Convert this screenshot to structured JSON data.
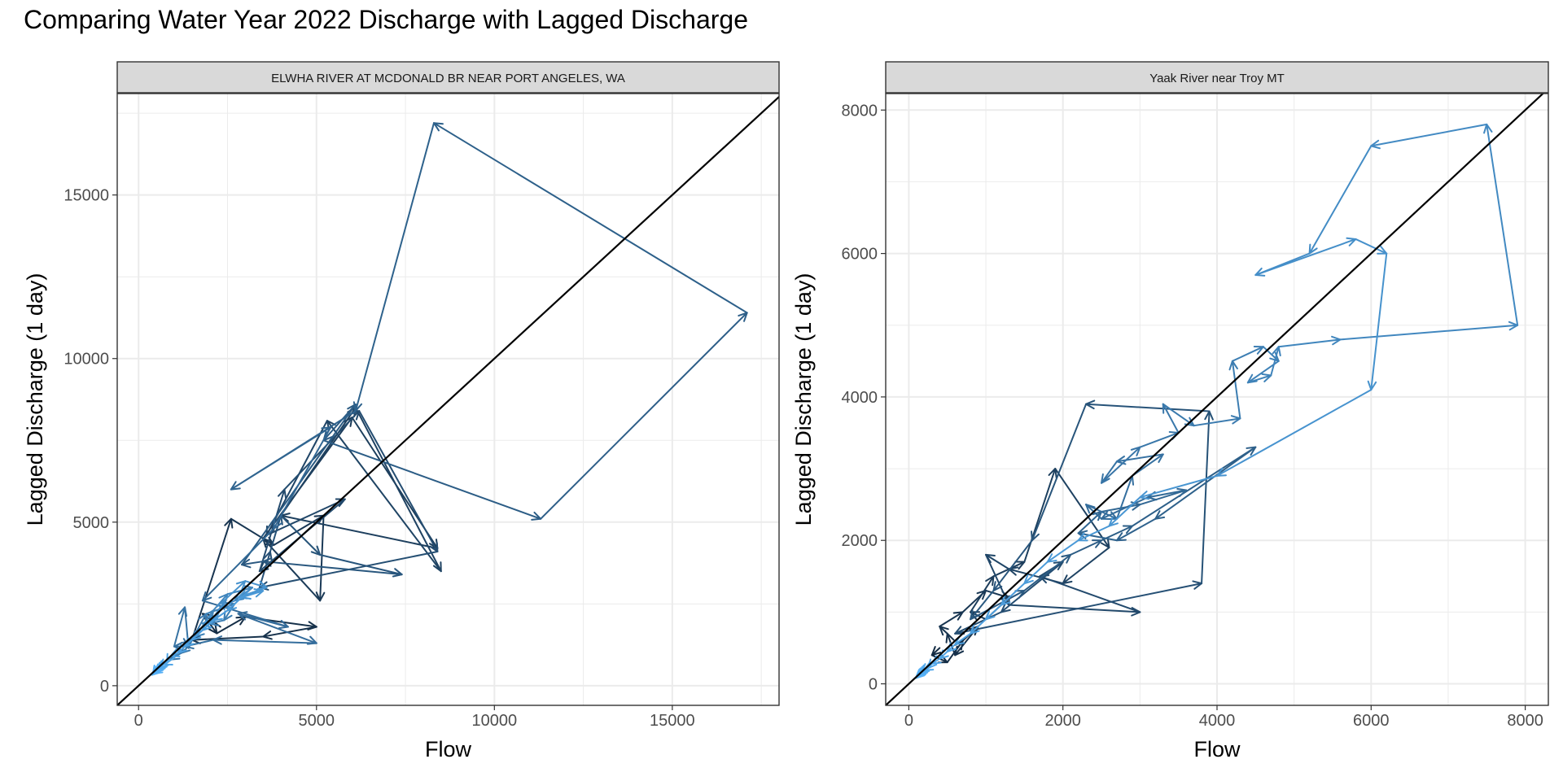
{
  "title": "Comparing Water Year 2022 Discharge with Lagged Discharge",
  "colors": {
    "early": "#132B43",
    "late": "#56B1F7",
    "grid": "#EBEBEB",
    "strip_fill": "#D9D9D9",
    "identity_line": "#000000"
  },
  "chart_data": [
    {
      "type": "path-arrows",
      "strip_label": "ELWHA RIVER AT MCDONALD BR NEAR PORT ANGELES, WA",
      "xlabel": "Flow",
      "ylabel": "Lagged Discharge (1 day)",
      "xlim": [
        -600,
        18000
      ],
      "ylim": [
        -600,
        18100
      ],
      "xticks": [
        0,
        5000,
        10000,
        15000
      ],
      "yticks": [
        0,
        5000,
        10000,
        15000
      ],
      "identity_line": true,
      "grid": true,
      "points": [
        [
          2300,
          1800
        ],
        [
          1800,
          2200
        ],
        [
          2200,
          1600
        ],
        [
          3000,
          2100
        ],
        [
          5000,
          1800
        ],
        [
          3500,
          1500
        ],
        [
          1500,
          1400
        ],
        [
          2600,
          5100
        ],
        [
          3800,
          4300
        ],
        [
          5200,
          5200
        ],
        [
          5100,
          2600
        ],
        [
          3500,
          4500
        ],
        [
          6000,
          8200
        ],
        [
          8400,
          4200
        ],
        [
          4000,
          5200
        ],
        [
          6100,
          8500
        ],
        [
          8500,
          3500
        ],
        [
          5300,
          8100
        ],
        [
          3600,
          4600
        ],
        [
          5800,
          5700
        ],
        [
          3400,
          3500
        ],
        [
          4100,
          6000
        ],
        [
          6200,
          8400
        ],
        [
          8400,
          4100
        ],
        [
          3400,
          3000
        ],
        [
          3700,
          4100
        ],
        [
          4000,
          5200
        ],
        [
          5100,
          4000
        ],
        [
          7400,
          3400
        ],
        [
          3500,
          3800
        ],
        [
          2900,
          3700
        ],
        [
          6100,
          8600
        ],
        [
          5200,
          7500
        ],
        [
          11300,
          5100
        ],
        [
          17100,
          11400
        ],
        [
          8300,
          17200
        ],
        [
          6100,
          8400
        ],
        [
          2600,
          6000
        ],
        [
          5400,
          7900
        ],
        [
          3800,
          4800
        ],
        [
          1800,
          2600
        ],
        [
          4200,
          1800
        ],
        [
          2800,
          2200
        ],
        [
          5000,
          1300
        ],
        [
          2100,
          1400
        ],
        [
          1300,
          1200
        ],
        [
          1000,
          1200
        ],
        [
          1300,
          2400
        ],
        [
          1400,
          1200
        ],
        [
          1200,
          1000
        ],
        [
          900,
          800
        ],
        [
          1500,
          1400
        ],
        [
          1900,
          2200
        ],
        [
          2700,
          2500
        ],
        [
          2400,
          2000
        ],
        [
          2000,
          1900
        ],
        [
          1800,
          1700
        ],
        [
          1600,
          1500
        ],
        [
          2100,
          2300
        ],
        [
          2500,
          2800
        ],
        [
          3200,
          3000
        ],
        [
          2700,
          2600
        ],
        [
          2300,
          2400
        ],
        [
          2000,
          1900
        ],
        [
          1800,
          1900
        ],
        [
          2200,
          2100
        ],
        [
          2400,
          2600
        ],
        [
          3000,
          3200
        ],
        [
          3600,
          3000
        ],
        [
          2800,
          2700
        ],
        [
          3500,
          2900
        ],
        [
          2900,
          2700
        ],
        [
          2500,
          2300
        ],
        [
          2100,
          2000
        ],
        [
          1800,
          1700
        ],
        [
          1500,
          1400
        ],
        [
          1300,
          1200
        ],
        [
          1100,
          1000
        ],
        [
          900,
          900
        ],
        [
          800,
          700
        ],
        [
          700,
          650
        ],
        [
          600,
          550
        ],
        [
          550,
          500
        ],
        [
          500,
          450
        ],
        [
          450,
          400
        ],
        [
          420,
          380
        ],
        [
          400,
          350
        ],
        [
          380,
          330
        ]
      ]
    },
    {
      "type": "path-arrows",
      "strip_label": "Yaak River near Troy MT",
      "xlabel": "Flow",
      "ylabel": "Lagged Discharge (1 day)",
      "xlim": [
        -300,
        8300
      ],
      "ylim": [
        -300,
        8230
      ],
      "xticks": [
        0,
        2000,
        4000,
        6000,
        8000
      ],
      "yticks": [
        0,
        2000,
        4000,
        6000,
        8000
      ],
      "identity_line": true,
      "grid": true,
      "points": [
        [
          400,
          500
        ],
        [
          300,
          400
        ],
        [
          500,
          300
        ],
        [
          700,
          600
        ],
        [
          900,
          800
        ],
        [
          600,
          400
        ],
        [
          500,
          700
        ],
        [
          400,
          800
        ],
        [
          700,
          1000
        ],
        [
          1000,
          1300
        ],
        [
          1300,
          1200
        ],
        [
          1000,
          900
        ],
        [
          800,
          1000
        ],
        [
          1100,
          1500
        ],
        [
          1500,
          1700
        ],
        [
          1900,
          3000
        ],
        [
          2600,
          1900
        ],
        [
          2000,
          1400
        ],
        [
          1300,
          1600
        ],
        [
          1000,
          1800
        ],
        [
          1300,
          1100
        ],
        [
          3000,
          1000
        ],
        [
          1700,
          1500
        ],
        [
          2000,
          1700
        ],
        [
          1200,
          1000
        ],
        [
          600,
          700
        ],
        [
          3800,
          1400
        ],
        [
          3900,
          3800
        ],
        [
          2300,
          3900
        ],
        [
          1600,
          2000
        ],
        [
          1100,
          1300
        ],
        [
          800,
          900
        ],
        [
          1500,
          1300
        ],
        [
          2100,
          1800
        ],
        [
          2500,
          2000
        ],
        [
          2900,
          2200
        ],
        [
          4500,
          3300
        ],
        [
          3200,
          2300
        ],
        [
          2700,
          2000
        ],
        [
          2200,
          2100
        ],
        [
          2500,
          2400
        ],
        [
          3000,
          2500
        ],
        [
          3600,
          2700
        ],
        [
          3100,
          2600
        ],
        [
          2500,
          2300
        ],
        [
          2300,
          2500
        ],
        [
          2700,
          2300
        ],
        [
          2900,
          2900
        ],
        [
          3300,
          3200
        ],
        [
          2700,
          3100
        ],
        [
          2500,
          2800
        ],
        [
          3000,
          3300
        ],
        [
          3500,
          3500
        ],
        [
          3300,
          3900
        ],
        [
          3700,
          3600
        ],
        [
          4300,
          3700
        ],
        [
          4200,
          4500
        ],
        [
          4600,
          4700
        ],
        [
          4800,
          4500
        ],
        [
          4400,
          4200
        ],
        [
          4700,
          4300
        ],
        [
          4800,
          4700
        ],
        [
          5600,
          4800
        ],
        [
          7900,
          5000
        ],
        [
          7500,
          7800
        ],
        [
          6000,
          7500
        ],
        [
          5200,
          6000
        ],
        [
          4500,
          5700
        ],
        [
          5800,
          6200
        ],
        [
          6200,
          6000
        ],
        [
          6000,
          4100
        ],
        [
          4000,
          2900
        ],
        [
          3000,
          2600
        ],
        [
          2600,
          2200
        ],
        [
          2200,
          2000
        ],
        [
          1800,
          1700
        ],
        [
          1500,
          1400
        ],
        [
          1200,
          1100
        ],
        [
          1000,
          900
        ],
        [
          800,
          700
        ],
        [
          600,
          550
        ],
        [
          500,
          450
        ],
        [
          400,
          350
        ],
        [
          300,
          280
        ],
        [
          250,
          220
        ],
        [
          200,
          190
        ],
        [
          170,
          160
        ],
        [
          150,
          140
        ],
        [
          130,
          120
        ],
        [
          110,
          100
        ],
        [
          100,
          90
        ],
        [
          90,
          80
        ]
      ]
    }
  ]
}
